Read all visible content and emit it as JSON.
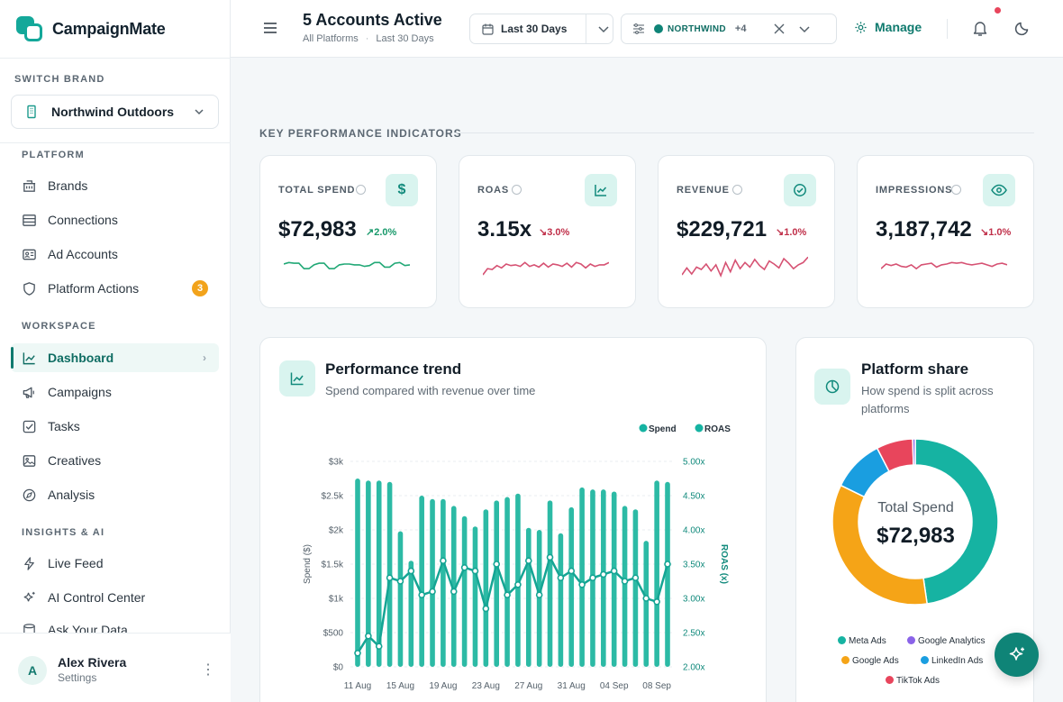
{
  "app": {
    "name": "CampaignMate"
  },
  "sidebar": {
    "switch_label": "SWITCH BRAND",
    "brand": "Northwind Outdoors",
    "sections": [
      {
        "label": "PLATFORM",
        "items": [
          {
            "label": "Brands",
            "icon": "building-icon"
          },
          {
            "label": "Connections",
            "icon": "server-icon"
          },
          {
            "label": "Ad Accounts",
            "icon": "id-card-icon"
          },
          {
            "label": "Platform Actions",
            "icon": "shield-icon",
            "badge": "3"
          }
        ]
      },
      {
        "label": "WORKSPACE",
        "items": [
          {
            "label": "Dashboard",
            "icon": "chart-icon",
            "active": true
          },
          {
            "label": "Campaigns",
            "icon": "megaphone-icon"
          },
          {
            "label": "Tasks",
            "icon": "checkbox-icon"
          },
          {
            "label": "Creatives",
            "icon": "image-icon"
          },
          {
            "label": "Analysis",
            "icon": "compass-icon"
          }
        ]
      },
      {
        "label": "INSIGHTS & AI",
        "items": [
          {
            "label": "Live Feed",
            "icon": "bolt-icon"
          },
          {
            "label": "AI Control Center",
            "icon": "sparkle-icon"
          },
          {
            "label": "Ask Your Data",
            "icon": "database-icon"
          }
        ]
      }
    ],
    "user": {
      "initial": "A",
      "name": "Alex Rivera",
      "subtitle": "Settings"
    }
  },
  "topbar": {
    "title": "5 Accounts Active",
    "subtitle_left": "All Platforms",
    "subtitle_right": "Last 30 Days",
    "date_range": "Last 30 Days",
    "account_filter": "NORTHWIND",
    "account_more": "+4",
    "manage_label": "Manage"
  },
  "kpi_section": {
    "title": "KEY PERFORMANCE INDICATORS"
  },
  "kpis": [
    {
      "label": "TOTAL SPEND",
      "value": "$72,983",
      "delta": "2.0%",
      "direction": "up",
      "color": "#1a9a6c",
      "icon": "dollar-icon"
    },
    {
      "label": "ROAS",
      "value": "3.15x",
      "delta": "3.0%",
      "direction": "down",
      "color": "#c0304a",
      "icon": "chart-line-icon"
    },
    {
      "label": "REVENUE",
      "value": "$229,721",
      "delta": "1.0%",
      "direction": "down",
      "color": "#c0304a",
      "icon": "check-circle-icon"
    },
    {
      "label": "IMPRESSIONS",
      "value": "3,187,742",
      "delta": "1.0%",
      "direction": "down",
      "color": "#c0304a",
      "icon": "eye-icon"
    }
  ],
  "trend_card": {
    "title": "Performance trend",
    "subtitle": "Spend compared with revenue over time"
  },
  "share_card": {
    "title": "Platform share",
    "subtitle_1": "How spend is split across",
    "subtitle_2": "platforms",
    "center_label": "Total Spend",
    "center_value": "$72,983"
  },
  "chart_data": [
    {
      "type": "bar",
      "xlabel": "",
      "ylabel": "Spend ($)",
      "y2label": "ROAS (x)",
      "ylim": [
        0,
        3000
      ],
      "y2lim": [
        2.0,
        5.0
      ],
      "y_ticks": [
        "$0",
        "$500",
        "$1k",
        "$1.5k",
        "$2k",
        "$2.5k",
        "$3k"
      ],
      "y2_ticks": [
        "2.00x",
        "2.50x",
        "3.00x",
        "3.50x",
        "4.00x",
        "4.50x",
        "5.00x"
      ],
      "x_ticks": [
        "11 Aug",
        "15 Aug",
        "19 Aug",
        "23 Aug",
        "27 Aug",
        "31 Aug",
        "04 Sep",
        "08 Sep"
      ],
      "legend": [
        "Spend",
        "ROAS"
      ],
      "series": [
        {
          "name": "Spend",
          "values": [
            2750,
            2720,
            2720,
            2700,
            1980,
            1550,
            2500,
            2450,
            2450,
            2350,
            2200,
            2050,
            2300,
            2430,
            2480,
            2530,
            2030,
            2000,
            2430,
            1950,
            2330,
            2620,
            2590,
            2590,
            2560,
            2350,
            2300,
            1840,
            2720,
            2700
          ]
        },
        {
          "name": "ROAS",
          "values": [
            2.2,
            2.45,
            2.3,
            3.3,
            3.25,
            3.4,
            3.05,
            3.1,
            3.55,
            3.1,
            3.45,
            3.4,
            2.85,
            3.5,
            3.05,
            3.2,
            3.55,
            3.05,
            3.6,
            3.3,
            3.4,
            3.2,
            3.3,
            3.35,
            3.4,
            3.25,
            3.3,
            3.0,
            2.95,
            3.5
          ]
        }
      ]
    },
    {
      "type": "pie",
      "categories": [
        "Meta Ads",
        "Google Ads",
        "LinkedIn Ads",
        "TikTok Ads",
        "Google Analytics"
      ],
      "values": [
        47,
        34,
        10,
        7,
        0.5
      ]
    },
    {
      "type": "line",
      "title": "",
      "values": [
        56,
        58,
        57,
        57,
        50,
        50,
        55,
        57,
        57,
        50,
        50,
        55,
        56,
        56,
        55,
        55,
        53,
        54,
        58,
        58,
        52,
        52,
        57,
        58,
        54,
        55
      ]
    },
    {
      "type": "line",
      "title": "",
      "values": [
        42,
        50,
        49,
        54,
        51,
        56,
        54,
        55,
        53,
        58,
        53,
        55,
        52,
        57,
        52,
        56,
        55,
        53,
        57,
        52,
        58,
        56,
        51,
        56,
        53,
        55,
        55,
        58
      ]
    },
    {
      "type": "line",
      "title": "",
      "values": [
        42,
        51,
        43,
        52,
        49,
        56,
        47,
        55,
        41,
        58,
        46,
        61,
        50,
        58,
        52,
        62,
        54,
        49,
        60,
        56,
        51,
        63,
        57,
        50,
        55,
        58,
        65
      ]
    },
    {
      "type": "line",
      "title": "",
      "values": [
        50,
        56,
        54,
        56,
        53,
        52,
        55,
        50,
        55,
        56,
        57,
        52,
        55,
        56,
        58,
        57,
        58,
        56,
        55,
        56,
        57,
        55,
        53,
        56,
        57,
        55
      ]
    }
  ],
  "palette": {
    "accent": "#14a89a",
    "meta": "#16b3a2",
    "google": "#f5a417",
    "linkedin": "#1a9ee0",
    "tiktok": "#e8455c",
    "analytics": "#8a63e8",
    "spark_up": "#21a876",
    "spark_down": "#d65273"
  }
}
